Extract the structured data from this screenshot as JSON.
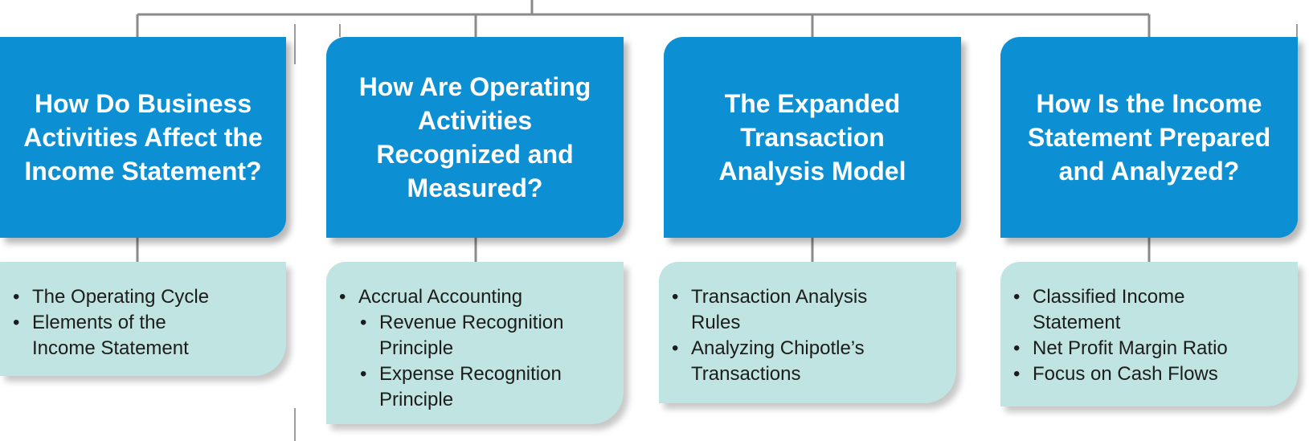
{
  "diagram": {
    "colors": {
      "topic_fill": "#0d8fd4",
      "topic_text": "#ffffff",
      "detail_fill": "#bfe4e1",
      "detail_text": "#1c1c1c",
      "connector": "#8a8a8a"
    },
    "topics": [
      {
        "title": "How Do Business\nActivities Affect the\nIncome Statement?",
        "items": [
          {
            "text": "The Operating Cycle",
            "level": 1
          },
          {
            "text": "Elements of the\nIncome Statement",
            "level": 1
          }
        ]
      },
      {
        "title": "How Are Operating\nActivities\nRecognized and\nMeasured?",
        "items": [
          {
            "text": "Accrual Accounting",
            "level": 1
          },
          {
            "text": "Revenue Recognition\nPrinciple",
            "level": 2
          },
          {
            "text": "Expense Recognition\nPrinciple",
            "level": 2
          }
        ]
      },
      {
        "title": "The Expanded\nTransaction\nAnalysis Model",
        "items": [
          {
            "text": "Transaction Analysis\nRules",
            "level": 1
          },
          {
            "text": "Analyzing Chipotle’s\nTransactions",
            "level": 1
          }
        ]
      },
      {
        "title": "How Is the Income\nStatement Prepared\nand Analyzed?",
        "items": [
          {
            "text": "Classified Income\nStatement",
            "level": 1
          },
          {
            "text": "Net Profit Margin Ratio",
            "level": 1
          },
          {
            "text": "Focus on Cash Flows",
            "level": 1
          }
        ]
      }
    ]
  }
}
